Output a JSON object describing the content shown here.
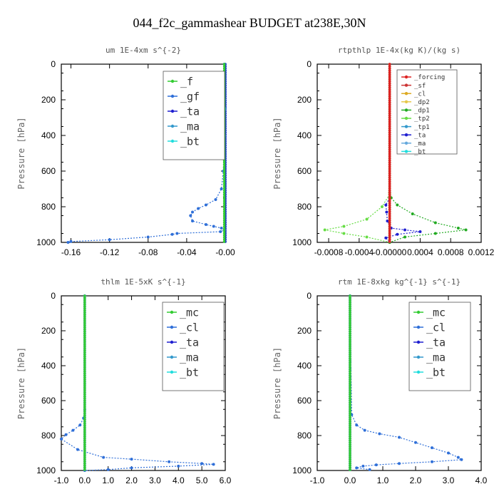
{
  "title": "044_f2c_gammashear  BUDGET at238E,30N",
  "chart_data": [
    {
      "type": "line",
      "title": "um  1E-4xm s^{-2}",
      "ylabel": "Pressure [hPa]",
      "xlim": [
        -0.17,
        0.0
      ],
      "ylim": [
        1000,
        0
      ],
      "xticks": [
        -0.16,
        -0.12,
        -0.08,
        -0.04,
        -0.0
      ],
      "xticklabels": [
        "-0.16",
        "-0.12",
        "-0.08",
        "-0.04",
        "-0.00"
      ],
      "yticks": [
        0,
        200,
        400,
        600,
        800,
        1000
      ],
      "legend_position": "top-right",
      "series": [
        {
          "name": "_f",
          "color": "#33cc33",
          "x": [
            -0.001,
            -0.001
          ],
          "y": [
            0,
            1000
          ]
        },
        {
          "name": "_gf",
          "color": "#2f6fd8",
          "x": [
            -0.001,
            -0.001,
            0.0,
            -0.001,
            -0.002,
            -0.004,
            -0.01,
            -0.02,
            -0.028,
            -0.034,
            -0.036,
            -0.034,
            -0.02,
            -0.012,
            -0.004,
            -0.001,
            -0.005,
            -0.05,
            -0.055,
            -0.08,
            -0.12,
            -0.16,
            -0.163
          ],
          "y": [
            0,
            200,
            250,
            400,
            600,
            700,
            760,
            790,
            810,
            830,
            850,
            880,
            900,
            910,
            920,
            930,
            940,
            950,
            955,
            970,
            985,
            995,
            1000
          ]
        },
        {
          "name": "_ta",
          "color": "#1f1fd0",
          "x": [
            0.0,
            0.0
          ],
          "y": [
            0,
            1000
          ]
        },
        {
          "name": "_ma",
          "color": "#3399cc",
          "x": [
            0.0,
            0.0
          ],
          "y": [
            0,
            1000
          ]
        },
        {
          "name": "_bt",
          "color": "#22dddd",
          "x": [
            0.0,
            0.0
          ],
          "y": [
            0,
            1000
          ]
        }
      ]
    },
    {
      "type": "line",
      "title": "rtpthlp  1E-4x(kg K)/(kg s)",
      "ylabel": "Pressure [hPa]",
      "xlim": [
        -0.00095,
        0.0012
      ],
      "ylim": [
        1000,
        0
      ],
      "xticks": [
        -0.0008,
        -0.0004,
        0.0,
        0.0004,
        0.0008,
        0.0012
      ],
      "xticklabels": [
        "-0.0008",
        "-0.0004",
        "-0.00000",
        "0.0004",
        "0.0008",
        "0.0012"
      ],
      "yticks": [
        0,
        200,
        400,
        600,
        800,
        1000
      ],
      "legend_position": "top-right",
      "series": [
        {
          "name": "_forcing",
          "color": "#dd2222",
          "x": [
            0.0,
            0.0
          ],
          "y": [
            0,
            1000
          ]
        },
        {
          "name": "_sf",
          "color": "#cc3333",
          "x": [
            0.0,
            0.0
          ],
          "y": [
            0,
            1000
          ]
        },
        {
          "name": "_cl",
          "color": "#ddaa22",
          "x": [
            0.0,
            0.0
          ],
          "y": [
            0,
            1000
          ]
        },
        {
          "name": "_dp2",
          "color": "#e6c84a",
          "x": [
            0.0,
            0.0
          ],
          "y": [
            0,
            1000
          ]
        },
        {
          "name": "_dp1",
          "color": "#22aa22",
          "x": [
            0.0,
            2e-05,
            0.0001,
            0.0003,
            0.0006,
            0.0009,
            0.001,
            0.0006,
            0.0002,
            0.0
          ],
          "y": [
            720,
            750,
            790,
            840,
            890,
            920,
            930,
            950,
            970,
            1000
          ]
        },
        {
          "name": "_tp2",
          "color": "#66dd44",
          "x": [
            0.0,
            -0.0001,
            -0.0003,
            -0.0006,
            -0.00085,
            -0.0006,
            -0.0003,
            0.0
          ],
          "y": [
            730,
            800,
            870,
            910,
            930,
            950,
            970,
            1000
          ]
        },
        {
          "name": "_tp1",
          "color": "#3399cc",
          "x": [
            0.0,
            0.0
          ],
          "y": [
            0,
            1000
          ]
        },
        {
          "name": "_ta",
          "color": "#1f1fd0",
          "x": [
            0.0,
            -5e-05,
            -4e-05,
            -3e-05,
            2e-05,
            0.0002,
            0.0004,
            0.0001,
            -5e-05,
            0.0
          ],
          "y": [
            750,
            790,
            830,
            880,
            920,
            930,
            940,
            955,
            975,
            1000
          ]
        },
        {
          "name": "_ma",
          "color": "#66aadd",
          "x": [
            0.0,
            0.0
          ],
          "y": [
            0,
            1000
          ]
        },
        {
          "name": "_bt",
          "color": "#22dddd",
          "x": [
            0.0,
            0.0
          ],
          "y": [
            0,
            1000
          ]
        }
      ]
    },
    {
      "type": "line",
      "title": "thlm  1E-5xK s^{-1}",
      "ylabel": "Pressure [hPa]",
      "xlim": [
        -1.0,
        6.0
      ],
      "ylim": [
        1000,
        0
      ],
      "xticks": [
        -1.0,
        0.0,
        1.0,
        2.0,
        3.0,
        4.0,
        5.0,
        6.0
      ],
      "xticklabels": [
        "-1.0",
        "0.0",
        "1.0",
        "2.0",
        "3.0",
        "4.0",
        "5.0",
        "6.0"
      ],
      "yticks": [
        0,
        200,
        400,
        600,
        800,
        1000
      ],
      "legend_position": "top-right",
      "series": [
        {
          "name": "_mc",
          "color": "#33cc33",
          "x": [
            0.0,
            0.0
          ],
          "y": [
            0,
            1000
          ]
        },
        {
          "name": "_cl",
          "color": "#2f6fd8",
          "x": [
            0.0,
            0.0,
            -0.05,
            -0.2,
            -0.5,
            -0.8,
            -1.0,
            -0.3,
            0.8,
            2.0,
            3.6,
            5.0,
            5.5,
            4.0,
            2.0,
            1.0,
            0.0
          ],
          "y": [
            0,
            650,
            700,
            740,
            770,
            795,
            820,
            880,
            925,
            935,
            950,
            960,
            965,
            975,
            985,
            995,
            1000
          ]
        },
        {
          "name": "_ta",
          "color": "#1f1fd0",
          "x": [
            0.0,
            0.0
          ],
          "y": [
            0,
            1000
          ]
        },
        {
          "name": "_ma",
          "color": "#3399cc",
          "x": [
            0.0,
            0.0
          ],
          "y": [
            0,
            1000
          ]
        },
        {
          "name": "_bt",
          "color": "#22dddd",
          "x": [
            0.0,
            0.0
          ],
          "y": [
            0,
            1000
          ]
        }
      ]
    },
    {
      "type": "line",
      "title": "rtm  1E-8xkg kg^{-1} s^{-1}",
      "ylabel": "Pressure [hPa]",
      "xlim": [
        -1.0,
        4.0
      ],
      "ylim": [
        1000,
        0
      ],
      "xticks": [
        -1.0,
        0.0,
        1.0,
        2.0,
        3.0,
        4.0
      ],
      "xticklabels": [
        "-1.0",
        "0.0",
        "1.0",
        "2.0",
        "3.0",
        "4.0"
      ],
      "yticks": [
        0,
        200,
        400,
        600,
        800,
        1000
      ],
      "legend_position": "top-right",
      "series": [
        {
          "name": "_mc",
          "color": "#33cc33",
          "x": [
            0.0,
            0.0
          ],
          "y": [
            0,
            1000
          ]
        },
        {
          "name": "_cl",
          "color": "#2f6fd8",
          "x": [
            0.0,
            0.05,
            0.2,
            0.45,
            0.9,
            1.5,
            2.0,
            2.5,
            3.0,
            3.3,
            3.4,
            2.5,
            1.5,
            0.8,
            0.4,
            0.2,
            0.6
          ],
          "y": [
            0,
            680,
            740,
            770,
            790,
            810,
            840,
            870,
            900,
            925,
            938,
            950,
            960,
            968,
            975,
            985,
            995
          ]
        },
        {
          "name": "_ta",
          "color": "#1f1fd0",
          "x": [
            0.0,
            0.0
          ],
          "y": [
            0,
            1000
          ]
        },
        {
          "name": "_ma",
          "color": "#3399cc",
          "x": [
            0.0,
            0.0
          ],
          "y": [
            0,
            1000
          ]
        },
        {
          "name": "_bt",
          "color": "#22dddd",
          "x": [
            0.0,
            0.0
          ],
          "y": [
            0,
            1000
          ]
        }
      ]
    }
  ]
}
